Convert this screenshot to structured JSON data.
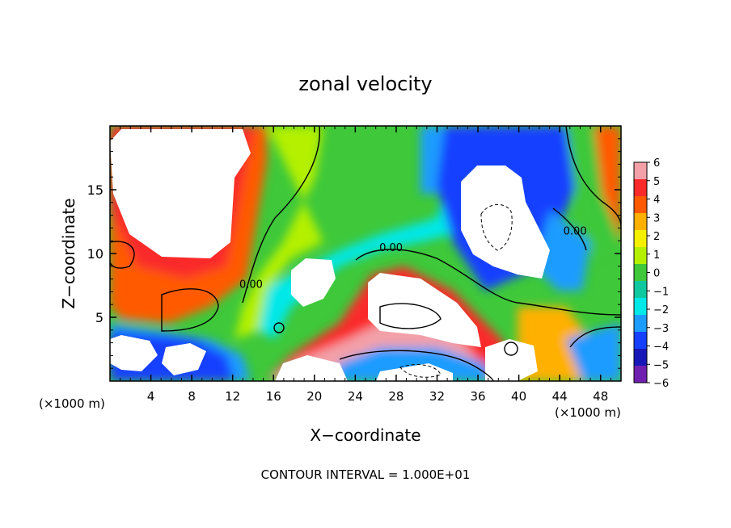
{
  "chart_data": {
    "type": "heatmap",
    "title": "zonal velocity",
    "xlabel": "X−coordinate",
    "ylabel": "Z−coordinate",
    "x_unit_label": "(×1000 m)",
    "y_unit_label": "(×1000 m)",
    "xlim": [
      0,
      50
    ],
    "ylim": [
      0,
      20
    ],
    "x_ticks": [
      4,
      8,
      12,
      16,
      20,
      24,
      28,
      32,
      36,
      40,
      44,
      48
    ],
    "y_ticks": [
      5,
      10,
      15
    ],
    "footer": "CONTOUR INTERVAL = 1.000E+01",
    "colorbar": {
      "labels": [
        "6",
        "5",
        "4",
        "3",
        "2",
        "1",
        "0",
        "−1",
        "−2",
        "−3",
        "−4",
        "−5",
        "−6"
      ],
      "range": [
        -6,
        6
      ],
      "colors": [
        "#f3a0a8",
        "#fa2a2a",
        "#ff5a00",
        "#ffb000",
        "#f5f000",
        "#b4f000",
        "#3ec83a",
        "#10c8a0",
        "#00e8e8",
        "#1c9cff",
        "#1640ff",
        "#1818b8",
        "#7020b0"
      ]
    },
    "contour_labels": [
      {
        "text": "0.00",
        "x": 13.8,
        "z": 7.3
      },
      {
        "text": "0.00",
        "x": 27.5,
        "z": 10.2
      },
      {
        "text": "0.00",
        "x": 45.5,
        "z": 11.5
      }
    ]
  }
}
